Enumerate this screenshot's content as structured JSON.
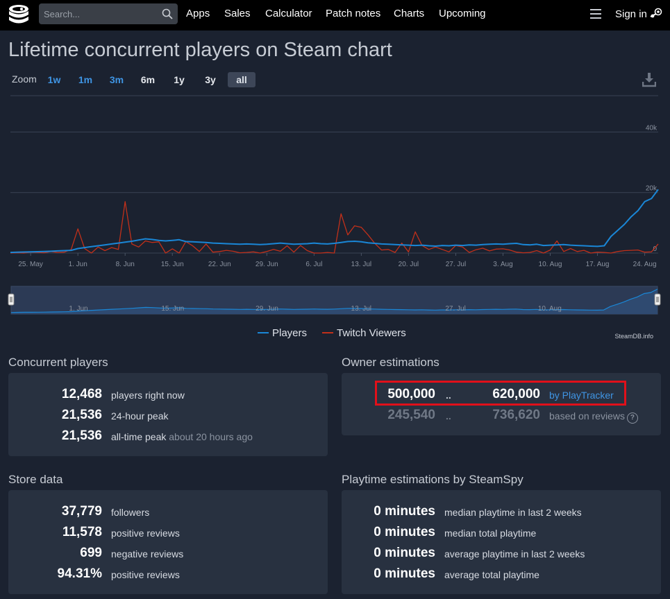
{
  "nav": {
    "search_placeholder": "Search...",
    "links": [
      "Apps",
      "Sales",
      "Calculator",
      "Patch notes",
      "Charts",
      "Upcoming"
    ],
    "signin": "Sign in"
  },
  "page": {
    "title": "Lifetime concurrent players on Steam chart"
  },
  "zoom": {
    "label": "Zoom",
    "options": [
      "1w",
      "1m",
      "3m",
      "6m",
      "1y",
      "3y",
      "all"
    ],
    "active": "all"
  },
  "chart_data": {
    "type": "line",
    "x": [
      "May 22",
      "May 23",
      "May 24",
      "May 25",
      "May 26",
      "May 27",
      "May 28",
      "May 29",
      "May 30",
      "May 31",
      "Jun 1",
      "Jun 2",
      "Jun 3",
      "Jun 4",
      "Jun 5",
      "Jun 6",
      "Jun 7",
      "Jun 8",
      "Jun 9",
      "Jun 10",
      "Jun 11",
      "Jun 12",
      "Jun 13",
      "Jun 14",
      "Jun 15",
      "Jun 16",
      "Jun 17",
      "Jun 18",
      "Jun 19",
      "Jun 20",
      "Jun 21",
      "Jun 22",
      "Jun 23",
      "Jun 24",
      "Jun 25",
      "Jun 26",
      "Jun 27",
      "Jun 28",
      "Jun 29",
      "Jun 30",
      "Jul 1",
      "Jul 2",
      "Jul 3",
      "Jul 4",
      "Jul 5",
      "Jul 6",
      "Jul 7",
      "Jul 8",
      "Jul 9",
      "Jul 10",
      "Jul 11",
      "Jul 12",
      "Jul 13",
      "Jul 14",
      "Jul 15",
      "Jul 16",
      "Jul 17",
      "Jul 18",
      "Jul 19",
      "Jul 20",
      "Jul 21",
      "Jul 22",
      "Jul 23",
      "Jul 24",
      "Jul 25",
      "Jul 26",
      "Jul 27",
      "Jul 28",
      "Jul 29",
      "Jul 30",
      "Jul 31",
      "Aug 1",
      "Aug 2",
      "Aug 3",
      "Aug 4",
      "Aug 5",
      "Aug 6",
      "Aug 7",
      "Aug 8",
      "Aug 9",
      "Aug 10",
      "Aug 11",
      "Aug 12",
      "Aug 13",
      "Aug 14",
      "Aug 15",
      "Aug 16",
      "Aug 17",
      "Aug 18",
      "Aug 19",
      "Aug 20",
      "Aug 21",
      "Aug 22",
      "Aug 23",
      "Aug 24",
      "Aug 25",
      "Aug 26"
    ],
    "series": [
      {
        "name": "Players",
        "color": "#1a87d7",
        "values": [
          200,
          300,
          350,
          400,
          450,
          500,
          600,
          700,
          800,
          900,
          1500,
          1800,
          2100,
          2400,
          2700,
          3000,
          3300,
          3600,
          3900,
          4300,
          4700,
          4500,
          4200,
          4000,
          4200,
          4400,
          3800,
          3700,
          3600,
          3500,
          3300,
          3200,
          3100,
          3000,
          2900,
          3000,
          2900,
          2800,
          2900,
          3100,
          3300,
          3100,
          2900,
          3000,
          3100,
          3300,
          3100,
          3000,
          3200,
          3500,
          3800,
          3900,
          3700,
          3400,
          3200,
          3000,
          2900,
          2800,
          2700,
          2600,
          2500,
          2600,
          2400,
          2300,
          2500,
          2400,
          2600,
          2500,
          2700,
          2600,
          2800,
          2900,
          3000,
          2900,
          3100,
          3200,
          2800,
          2700,
          2900,
          2500,
          2600,
          2700,
          2800,
          2600,
          2500,
          2400,
          2300,
          2200,
          2400,
          5500,
          7500,
          9500,
          12000,
          14000,
          17000,
          18000,
          21000
        ]
      },
      {
        "name": "Twitch Viewers",
        "color": "#c2301a",
        "values": [
          0,
          100,
          0,
          300,
          200,
          100,
          500,
          200,
          300,
          1200,
          8000,
          1500,
          0,
          2000,
          800,
          1800,
          1200,
          17000,
          3000,
          2000,
          4000,
          3500,
          3700,
          0,
          1400,
          0,
          3800,
          2400,
          500,
          3000,
          300,
          500,
          900,
          600,
          100,
          200,
          400,
          0,
          500,
          1200,
          600,
          2400,
          300,
          2500,
          800,
          0,
          0,
          200,
          0,
          13000,
          6000,
          9000,
          8500,
          6000,
          3200,
          1000,
          1200,
          200,
          3300,
          400,
          7000,
          2500,
          1200,
          2000,
          1200,
          400,
          2500,
          2000,
          200,
          1100,
          1600,
          700,
          1300,
          1400,
          1000,
          300,
          100,
          200,
          800,
          0,
          1000,
          4000,
          500,
          1500,
          500,
          900,
          0,
          300,
          200,
          0,
          500,
          800,
          900,
          1000,
          300,
          400,
          3000
        ]
      }
    ],
    "twitch_peak_labels_mid": [],
    "y_ticks": [
      "0",
      "20k",
      "40k"
    ],
    "ylim": [
      0,
      52000
    ],
    "x_tick_labels": [
      "25. May",
      "1. Jun",
      "8. Jun",
      "15. Jun",
      "22. Jun",
      "29. Jun",
      "6. Jul",
      "13. Jul",
      "20. Jul",
      "27. Jul",
      "3. Aug",
      "10. Aug",
      "17. Aug",
      "24. Aug"
    ],
    "navigator_labels": [
      "1. Jun",
      "15. Jun",
      "29. Jun",
      "13. Jul",
      "27. Jul",
      "10. Aug"
    ],
    "legend": [
      "Players",
      "Twitch Viewers"
    ],
    "legend_placement": "bottom-center",
    "grid": true,
    "credit": "SteamDB.info"
  },
  "concurrent": {
    "title": "Concurrent players",
    "rows": [
      {
        "value": "12,468",
        "label": "players right now",
        "extra": ""
      },
      {
        "value": "21,536",
        "label": "24-hour peak",
        "extra": ""
      },
      {
        "value": "21,536",
        "label": "all-time peak",
        "extra": "about 20 hours ago"
      }
    ]
  },
  "owners": {
    "title": "Owner estimations",
    "rows": [
      {
        "low": "500,000",
        "sep": "..",
        "high": "620,000",
        "source": "by PlayTracker"
      },
      {
        "low": "245,540",
        "sep": "..",
        "high": "736,620",
        "source": "based on reviews"
      }
    ],
    "help_icon": "?"
  },
  "store": {
    "title": "Store data",
    "rows": [
      {
        "value": "37,779",
        "label": "followers"
      },
      {
        "value": "11,578",
        "label": "positive reviews"
      },
      {
        "value": "699",
        "label": "negative reviews"
      },
      {
        "value": "94.31%",
        "label": "positive reviews"
      }
    ]
  },
  "playtime": {
    "title": "Playtime estimations by SteamSpy",
    "rows": [
      {
        "value": "0 minutes",
        "label": "median playtime in last 2 weeks"
      },
      {
        "value": "0 minutes",
        "label": "median total playtime"
      },
      {
        "value": "0 minutes",
        "label": "average playtime in last 2 weeks"
      },
      {
        "value": "0 minutes",
        "label": "average total playtime"
      }
    ]
  }
}
